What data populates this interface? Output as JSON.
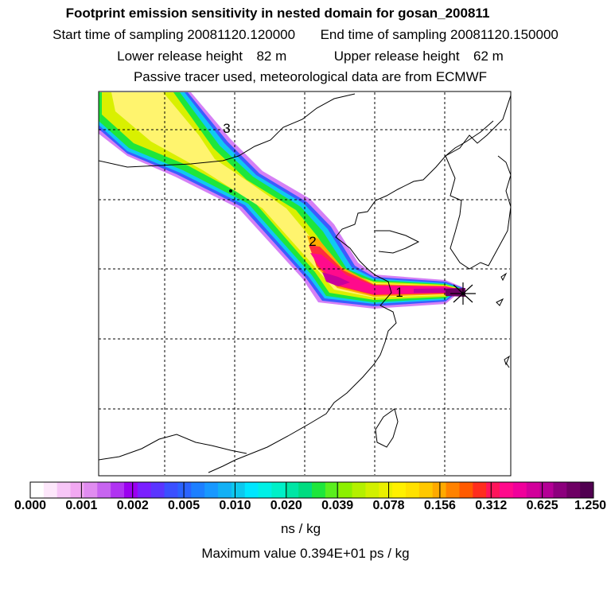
{
  "titles": {
    "main": "Footprint emission sensitivity in nested domain for gosan_200811",
    "start_label": "Start time of sampling",
    "start_value": "20081120.120000",
    "end_label": "End time of sampling",
    "end_value": "20081120.150000",
    "lower_label": "Lower release height",
    "lower_value": "82 m",
    "upper_label": "Upper release height",
    "upper_value": "62 m",
    "note": "Passive tracer used, meteorological data are from ECMWF"
  },
  "map": {
    "markers": [
      {
        "label": "1"
      },
      {
        "label": "2"
      },
      {
        "label": "3"
      }
    ],
    "receptor": "Gosan"
  },
  "colorbar": {
    "tick_labels": [
      "0.000",
      "0.001",
      "0.002",
      "0.005",
      "0.010",
      "0.020",
      "0.039",
      "0.078",
      "0.156",
      "0.312",
      "0.625",
      "1.250"
    ],
    "colors": [
      "#ffffff",
      "#fde7fb",
      "#f7c6f7",
      "#f2a8f2",
      "#e08cf0",
      "#c764f0",
      "#b033f2",
      "#9b00f0",
      "#7a1fff",
      "#5a35ff",
      "#3b50ff",
      "#2b63ff",
      "#1d7fff",
      "#1898ff",
      "#12b0f5",
      "#0dc8ee",
      "#00e6ff",
      "#00f0e6",
      "#00f0c8",
      "#00e6a5",
      "#00dc80",
      "#1ee63c",
      "#5aee1e",
      "#8cf000",
      "#b4f000",
      "#d2f000",
      "#ebf000",
      "#fff000",
      "#ffe100",
      "#ffc800",
      "#ffaa00",
      "#ff8200",
      "#ff5a00",
      "#ff2d1e",
      "#ff145a",
      "#ff0a8c",
      "#f0009b",
      "#d2009b",
      "#b40096",
      "#8c007d",
      "#6e0064",
      "#500050"
    ],
    "units": "ns / kg"
  },
  "max_value_text": "Maximum value  0.394E+01 ps / kg"
}
